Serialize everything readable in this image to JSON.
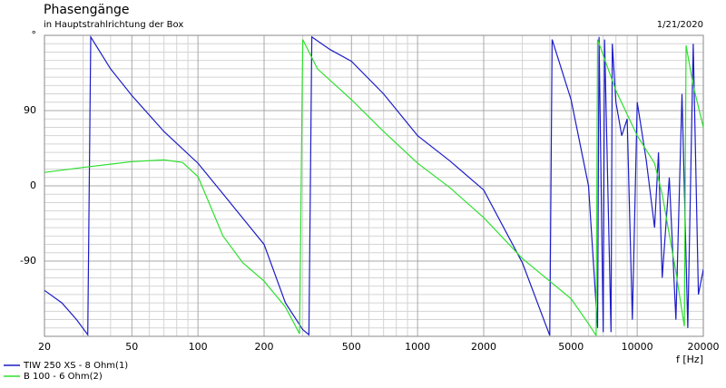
{
  "chart_data": {
    "type": "line",
    "title": "Phasengänge",
    "subtitle": "in Hauptstrahlrichtung der Box",
    "date": "1/21/2020",
    "xlabel": "f [Hz]",
    "xscale": "log",
    "xlim": [
      20,
      20000
    ],
    "xticks": [
      20,
      50,
      100,
      200,
      500,
      1000,
      2000,
      5000,
      10000,
      20000
    ],
    "xminor": [
      30,
      40,
      60,
      70,
      80,
      90,
      300,
      400,
      600,
      700,
      800,
      900,
      3000,
      4000,
      6000,
      7000,
      8000,
      9000
    ],
    "ylim": [
      -180,
      180
    ],
    "yticks": [
      {
        "value": 180,
        "label": "°"
      },
      90,
      0,
      -90
    ],
    "ygrid_step": 10,
    "grid": true,
    "series": [
      {
        "name": "TIW 250 XS - 8 Ohm(1)",
        "color": "#1c1cc8",
        "x": [
          20,
          24,
          28,
          31.5,
          32.5,
          40,
          50,
          70,
          100,
          140,
          200,
          250,
          300,
          320,
          330,
          400,
          500,
          700,
          1000,
          1400,
          2000,
          3000,
          4000,
          4100,
          5000,
          6000,
          6600,
          6700,
          7000,
          7100,
          7600,
          7700,
          8000,
          8500,
          9000,
          9500,
          10000,
          11000,
          12000,
          12500,
          13000,
          14000,
          15000,
          16000,
          17000,
          18000,
          19000,
          20000
        ],
        "values": [
          -125,
          -140,
          -160,
          -178,
          178,
          140,
          108,
          65,
          27,
          -20,
          -70,
          -140,
          -172,
          -178,
          178,
          163,
          149,
          110,
          60,
          30,
          -5,
          -92,
          -179,
          175,
          103,
          0,
          -170,
          178,
          -175,
          175,
          -175,
          170,
          100,
          60,
          80,
          -160,
          100,
          30,
          -50,
          40,
          -110,
          10,
          -160,
          110,
          -170,
          170,
          -130,
          -100
        ]
      },
      {
        "name": "B 100 - 6 Ohm(2)",
        "color": "#2ee02e",
        "x": [
          20,
          30,
          50,
          70,
          85,
          100,
          130,
          160,
          200,
          250,
          290,
          300,
          350,
          500,
          700,
          1000,
          1400,
          2000,
          3000,
          5000,
          6000,
          6500,
          6600,
          8000,
          10000,
          12000,
          13000,
          15000,
          16400,
          16700,
          18000,
          20000
        ],
        "values": [
          16,
          22,
          29,
          31,
          28,
          11,
          -60,
          -92,
          -114,
          -145,
          -177,
          175,
          140,
          103,
          65,
          27,
          -2,
          -38,
          -87,
          -135,
          -165,
          -179,
          175,
          114,
          60,
          27,
          -10,
          -103,
          -168,
          168,
          120,
          70
        ]
      }
    ]
  }
}
